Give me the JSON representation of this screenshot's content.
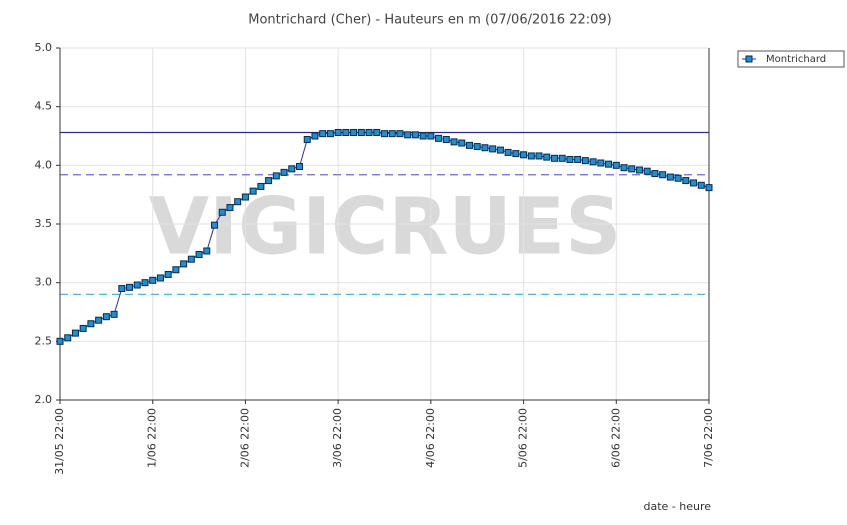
{
  "chart_data": {
    "type": "line",
    "title": "Montrichard (Cher) - Hauteurs en m (07/06/2016 22:09)",
    "x_label": "date - heure",
    "watermark": "VIGICRUES",
    "xlim": [
      "31/05 22:00",
      "7/06 22:00"
    ],
    "xticks": [
      "31/05 22:00",
      "1/06 22:00",
      "2/06 22:00",
      "3/06 22:00",
      "4/06 22:00",
      "5/06 22:00",
      "6/06 22:00",
      "7/06 22:00"
    ],
    "ylim": [
      2.0,
      5.0
    ],
    "yticks": [
      {
        "value": 2,
        "label": "2.0"
      },
      {
        "value": 2.5,
        "label": "2.5"
      },
      {
        "value": 3,
        "label": "3.0"
      },
      {
        "value": 3.5,
        "label": "3.5"
      },
      {
        "value": 4,
        "label": "4.0"
      },
      {
        "value": 4.5,
        "label": "4.5"
      },
      {
        "value": 5,
        "label": "5.0"
      }
    ],
    "grid": true,
    "legend": "right",
    "reference_lines": [
      {
        "value": 4.28,
        "color": "#2b2b8f",
        "dashed": false
      },
      {
        "value": 3.92,
        "color": "#6a6ae0",
        "dashed": true
      },
      {
        "value": 2.9,
        "color": "#4fb3e8",
        "dashed": true
      }
    ],
    "x": [
      "31/05 22:00",
      "1/06 00:00",
      "1/06 02:00",
      "1/06 04:00",
      "1/06 06:00",
      "1/06 08:00",
      "1/06 10:00",
      "1/06 12:00",
      "1/06 14:00",
      "1/06 16:00",
      "1/06 18:00",
      "1/06 20:00",
      "1/06 22:00",
      "2/06 00:00",
      "2/06 02:00",
      "2/06 04:00",
      "2/06 06:00",
      "2/06 08:00",
      "2/06 10:00",
      "2/06 12:00",
      "2/06 14:00",
      "2/06 16:00",
      "2/06 18:00",
      "2/06 20:00",
      "2/06 22:00",
      "3/06 00:00",
      "3/06 02:00",
      "3/06 04:00",
      "3/06 06:00",
      "3/06 08:00",
      "3/06 10:00",
      "3/06 12:00",
      "3/06 14:00",
      "3/06 16:00",
      "3/06 18:00",
      "3/06 20:00",
      "3/06 22:00",
      "4/06 00:00",
      "4/06 02:00",
      "4/06 04:00",
      "4/06 06:00",
      "4/06 08:00",
      "4/06 10:00",
      "4/06 12:00",
      "4/06 14:00",
      "4/06 16:00",
      "4/06 18:00",
      "4/06 20:00",
      "4/06 22:00",
      "5/06 00:00",
      "5/06 02:00",
      "5/06 04:00",
      "5/06 06:00",
      "5/06 08:00",
      "5/06 10:00",
      "5/06 12:00",
      "5/06 14:00",
      "5/06 16:00",
      "5/06 18:00",
      "5/06 20:00",
      "5/06 22:00",
      "6/06 00:00",
      "6/06 02:00",
      "6/06 04:00",
      "6/06 06:00",
      "6/06 08:00",
      "6/06 10:00",
      "6/06 12:00",
      "6/06 14:00",
      "6/06 16:00",
      "6/06 18:00",
      "6/06 20:00",
      "6/06 22:00",
      "7/06 00:00",
      "7/06 02:00",
      "7/06 04:00",
      "7/06 06:00",
      "7/06 08:00",
      "7/06 10:00",
      "7/06 12:00",
      "7/06 14:00",
      "7/06 16:00",
      "7/06 18:00",
      "7/06 20:00",
      "7/06 22:00"
    ],
    "series": [
      {
        "name": "Montrichard",
        "color": "#1e8fd0",
        "line_color": "#2b2bb0",
        "values": [
          2.5,
          2.53,
          2.57,
          2.61,
          2.65,
          2.68,
          2.71,
          2.73,
          2.95,
          2.96,
          2.98,
          3.0,
          3.02,
          3.04,
          3.07,
          3.11,
          3.16,
          3.2,
          3.24,
          3.27,
          3.49,
          3.6,
          3.64,
          3.69,
          3.73,
          3.78,
          3.82,
          3.87,
          3.91,
          3.94,
          3.97,
          3.99,
          4.22,
          4.25,
          4.27,
          4.27,
          4.28,
          4.28,
          4.28,
          4.28,
          4.28,
          4.28,
          4.27,
          4.27,
          4.27,
          4.26,
          4.26,
          4.25,
          4.25,
          4.23,
          4.22,
          4.2,
          4.19,
          4.17,
          4.16,
          4.15,
          4.14,
          4.13,
          4.11,
          4.1,
          4.09,
          4.08,
          4.08,
          4.07,
          4.06,
          4.06,
          4.05,
          4.05,
          4.04,
          4.03,
          4.02,
          4.01,
          4.0,
          3.98,
          3.97,
          3.96,
          3.95,
          3.93,
          3.92,
          3.9,
          3.89,
          3.87,
          3.85,
          3.83,
          3.81
        ]
      }
    ]
  }
}
